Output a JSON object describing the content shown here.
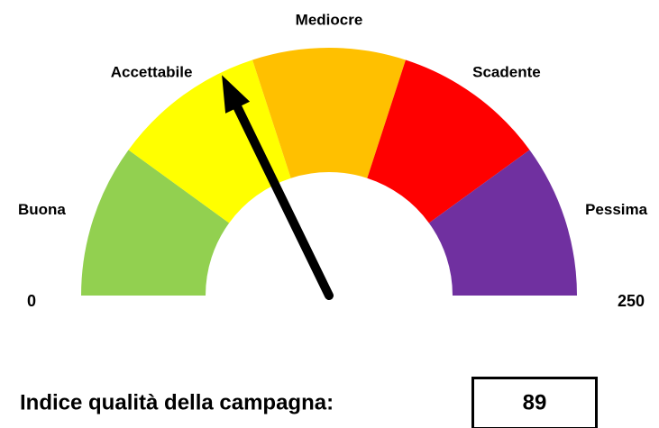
{
  "chart_data": {
    "type": "gauge",
    "title": "Indice qualità della campagna:",
    "categories": [
      "Buona",
      "Accettabile",
      "Mediocre",
      "Scadente",
      "Pessima"
    ],
    "values": [
      50,
      50,
      50,
      50,
      50
    ],
    "colors": [
      "#92d050",
      "#ffff00",
      "#ffc000",
      "#ff0000",
      "#7030a0"
    ],
    "ylim": [
      0,
      250
    ],
    "yticks": [
      0,
      250
    ],
    "value": 89
  }
}
